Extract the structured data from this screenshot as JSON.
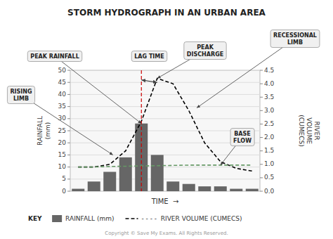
{
  "chart_data": {
    "type": "bar",
    "title": "STORM HYDROGRAPH IN AN URBAN AREA",
    "categories": [
      null,
      null,
      null,
      null,
      null,
      null,
      null,
      null,
      null,
      null,
      null,
      null
    ],
    "series": [
      {
        "name": "RAINFALL (mm)",
        "type": "bar",
        "color": "#666666",
        "values": [
          1,
          4,
          8,
          14,
          28,
          15,
          4,
          3,
          2,
          2,
          1,
          1
        ]
      },
      {
        "name": "- - - -  RIVER VOLUME (CUMECS)",
        "type": "line",
        "axis": "y2",
        "color": "#000000",
        "line_style": "dashed",
        "values": [
          0.9,
          0.9,
          1.0,
          1.5,
          2.6,
          4.2,
          4.0,
          3.0,
          1.8,
          1.1,
          0.85,
          0.75
        ]
      },
      {
        "type": "line",
        "axis": "y2",
        "color": "#669966",
        "line_style": "dashed",
        "values": [
          0.9,
          0.9,
          0.92,
          0.93,
          0.94,
          0.95,
          0.96,
          0.97,
          0.97,
          0.97,
          0.97,
          0.97
        ]
      }
    ],
    "x_label": "TIME  →",
    "y_label": "RAINFALL\n(mm)",
    "y2_label": "RIVER\nVOLUME\n(CUMECS)",
    "ylim": [
      0,
      50
    ],
    "yticks": [
      0,
      5,
      10,
      15,
      20,
      25,
      30,
      35,
      40,
      45,
      50
    ],
    "y2lim": [
      0,
      4.5
    ],
    "y2ticks": [
      {
        "value": 0,
        "label": "0.0"
      },
      0.5,
      {
        "value": 1.0,
        "label": "1.0"
      },
      1.5,
      {
        "value": 2.0,
        "label": "2.0"
      },
      2.5,
      {
        "value": 3.0,
        "label": "3.0"
      },
      3.5,
      {
        "value": 4.0,
        "label": "4.0"
      },
      4.5
    ],
    "grid": true,
    "tick_labels": "y",
    "legend": "bottom",
    "key_label": "KEY",
    "reference_lines": [
      {
        "x": 4,
        "color": "#cc0000",
        "line_style": "dashed"
      }
    ],
    "annotations": [
      {
        "text": "PEAK RAINFALL",
        "x": 4,
        "y": 28
      },
      {
        "text": "RISING\nLIMB",
        "x": 2.2,
        "y": 1.35,
        "axis": "y2"
      },
      {
        "text": "PEAK\nDISCHARGE",
        "x": 5,
        "y": 4.2,
        "axis": "y2"
      },
      {
        "text": "RECESSIONAL\nLIMB",
        "x": 7.5,
        "y": 3.1,
        "axis": "y2"
      },
      {
        "text": "BASE\nFLOW",
        "x": 9,
        "y": 0.97,
        "axis": "y2"
      },
      {
        "text": "LAG TIME",
        "from": {
          "x": 4,
          "y": 46
        },
        "to": {
          "x": 5,
          "y": 4.05,
          "axis": "y2"
        }
      }
    ],
    "footnote": "Copyright © Save My Exams. All Rights Reserved."
  }
}
